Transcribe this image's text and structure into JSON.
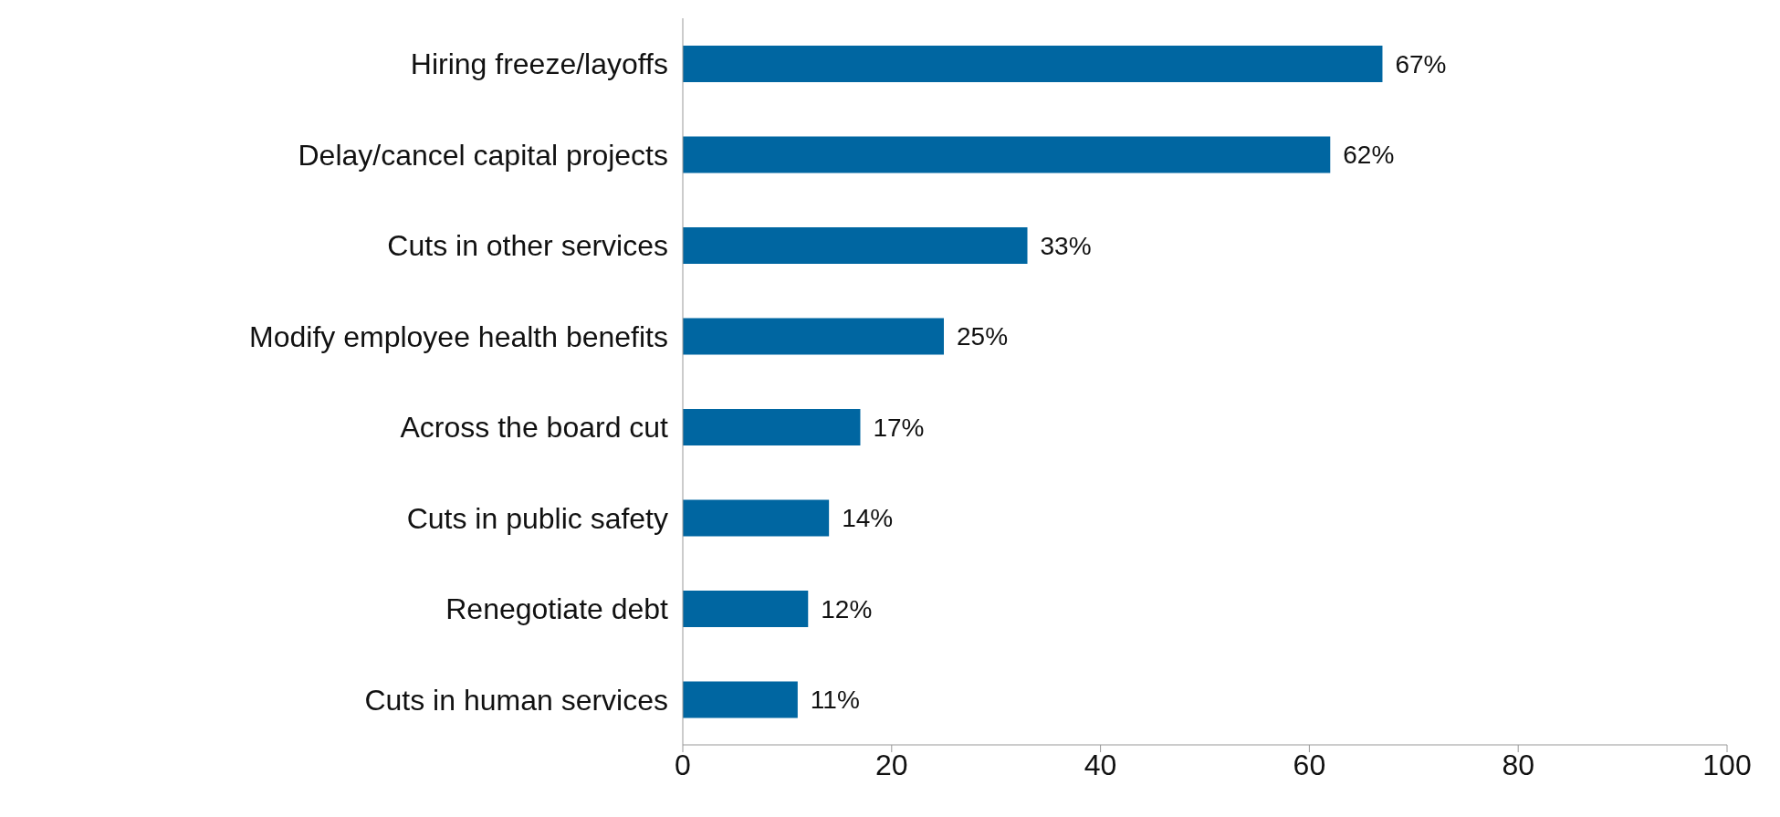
{
  "chart_data": {
    "type": "bar",
    "orientation": "horizontal",
    "categories": [
      "Hiring freeze/layoffs",
      "Delay/cancel capital projects",
      "Cuts in other services",
      "Modify employee health benefits",
      "Across the board cut",
      "Cuts in public safety",
      "Renegotiate debt",
      "Cuts in human services"
    ],
    "values": [
      67,
      62,
      33,
      25,
      17,
      14,
      12,
      11
    ],
    "value_labels": [
      "67%",
      "62%",
      "33%",
      "25%",
      "17%",
      "14%",
      "12%",
      "11%"
    ],
    "color": "#0066a1",
    "xlim": [
      0,
      100
    ],
    "xticks": [
      0,
      20,
      40,
      60,
      80,
      100
    ],
    "grid": false,
    "legend": false
  }
}
